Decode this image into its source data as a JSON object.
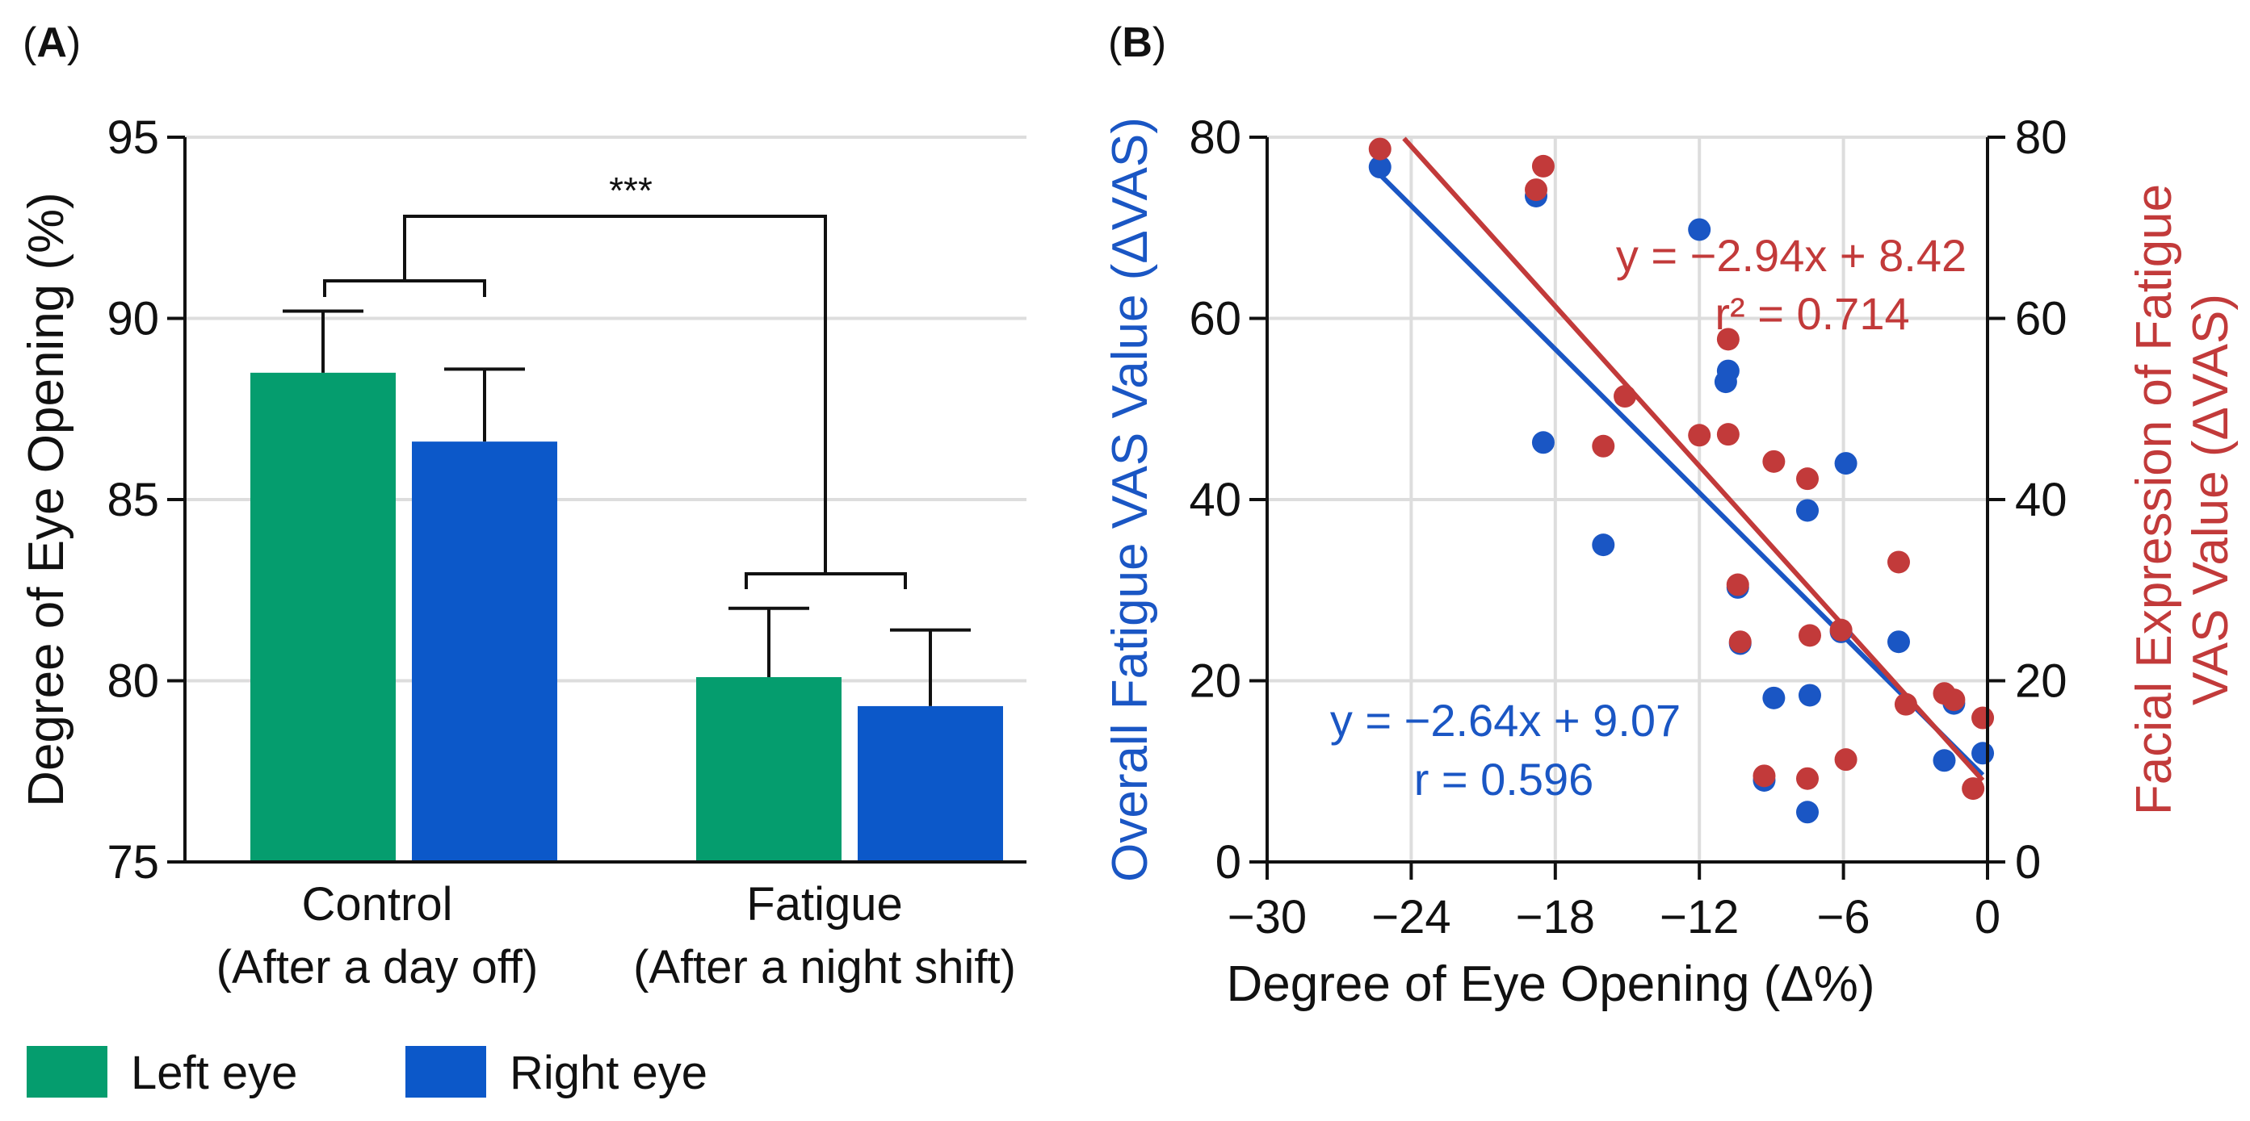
{
  "colors": {
    "left_eye": "#059D6E",
    "right_eye": "#0C58C9",
    "overall": "#1A56C4",
    "facial": "#C23A3A",
    "grid": "#dddddd",
    "axis": "#111111"
  },
  "chart_data": [
    {
      "panel": "(A)",
      "panel_label": {
        "open": "(",
        "letter": "A",
        "close": ")"
      },
      "type": "bar",
      "ylabel": "Degree of Eye Opening (%)",
      "ylim": [
        75,
        95
      ],
      "yticks": [
        "75",
        "80",
        "85",
        "90",
        "95"
      ],
      "ytick_values": [
        75,
        80,
        85,
        90,
        95
      ],
      "categories": [
        {
          "line1": "Control",
          "line2": "(After a day off)"
        },
        {
          "line1": "Fatigue",
          "line2": "(After a night shift)"
        }
      ],
      "series": [
        {
          "name": "Left eye",
          "values": [
            88.5,
            80.1
          ],
          "error": [
            1.7,
            1.9
          ]
        },
        {
          "name": "Right eye",
          "values": [
            86.6,
            79.3
          ],
          "error": [
            2.0,
            2.1
          ]
        }
      ],
      "significance": "***",
      "legend": [
        "Left eye",
        "Right eye"
      ],
      "legend_position": "bottom-left"
    },
    {
      "panel": "(B)",
      "panel_label": {
        "open": "(",
        "letter": "B",
        "close": ")"
      },
      "type": "scatter",
      "xlabel": "Degree of Eye Opening (Δ%)",
      "ylabel_left": "Overall Fatigue VAS Value (ΔVAS)",
      "ylabel_right_line1": "Facial Expression of Fatigue",
      "ylabel_right_line2": "VAS Value (ΔVAS)",
      "xlim": [
        -30,
        0
      ],
      "ylim": [
        0,
        80
      ],
      "xticks": [
        "−30",
        "−24",
        "−18",
        "−12",
        "−6",
        "0"
      ],
      "xtick_values": [
        -30,
        -24,
        -18,
        -12,
        -6,
        0
      ],
      "yticks": [
        "0",
        "20",
        "40",
        "60",
        "80"
      ],
      "ytick_values": [
        0,
        20,
        40,
        60,
        80
      ],
      "series": [
        {
          "name": "Overall Fatigue VAS",
          "axis": "left",
          "points": [
            [
              -25.3,
              76.7
            ],
            [
              -18.8,
              73.5
            ],
            [
              -18.5,
              46.3
            ],
            [
              -16.0,
              35.0
            ],
            [
              -12.0,
              69.8
            ],
            [
              -10.8,
              54.2
            ],
            [
              -10.9,
              53.0
            ],
            [
              -10.4,
              30.3
            ],
            [
              -10.3,
              24.1
            ],
            [
              -9.3,
              9.0
            ],
            [
              -8.9,
              18.1
            ],
            [
              -7.5,
              38.8
            ],
            [
              -7.5,
              5.5
            ],
            [
              -7.4,
              18.4
            ],
            [
              -6.1,
              25.4
            ],
            [
              -5.9,
              44.0
            ],
            [
              -3.7,
              24.3
            ],
            [
              -1.8,
              11.2
            ],
            [
              -1.4,
              17.5
            ],
            [
              -0.2,
              12.0
            ]
          ],
          "fit": {
            "slope": -2.64,
            "intercept": 9.07,
            "x_range": [
              -25.3,
              -0.2
            ]
          },
          "equation": "y = −2.64x + 9.07",
          "stat": "r = 0.596"
        },
        {
          "name": "Facial Expression of Fatigue VAS",
          "axis": "right",
          "points": [
            [
              -25.3,
              78.7
            ],
            [
              -18.8,
              74.2
            ],
            [
              -18.5,
              76.8
            ],
            [
              -16.0,
              45.9
            ],
            [
              -15.1,
              51.4
            ],
            [
              -12.0,
              47.1
            ],
            [
              -10.8,
              47.2
            ],
            [
              -10.8,
              57.7
            ],
            [
              -10.4,
              30.6
            ],
            [
              -10.3,
              24.3
            ],
            [
              -9.3,
              9.5
            ],
            [
              -8.9,
              44.2
            ],
            [
              -7.5,
              42.3
            ],
            [
              -7.5,
              9.2
            ],
            [
              -7.4,
              25.0
            ],
            [
              -6.1,
              25.6
            ],
            [
              -5.9,
              11.3
            ],
            [
              -3.7,
              33.1
            ],
            [
              -3.4,
              17.4
            ],
            [
              -1.8,
              18.6
            ],
            [
              -1.4,
              17.9
            ],
            [
              -0.6,
              8.1
            ],
            [
              -0.2,
              15.9
            ]
          ],
          "fit": {
            "slope": -2.94,
            "intercept": 8.42,
            "x_range": [
              -24.3,
              -0.2
            ]
          },
          "equation": "y = −2.94x + 8.42",
          "stat": "r² = 0.714"
        }
      ]
    }
  ]
}
